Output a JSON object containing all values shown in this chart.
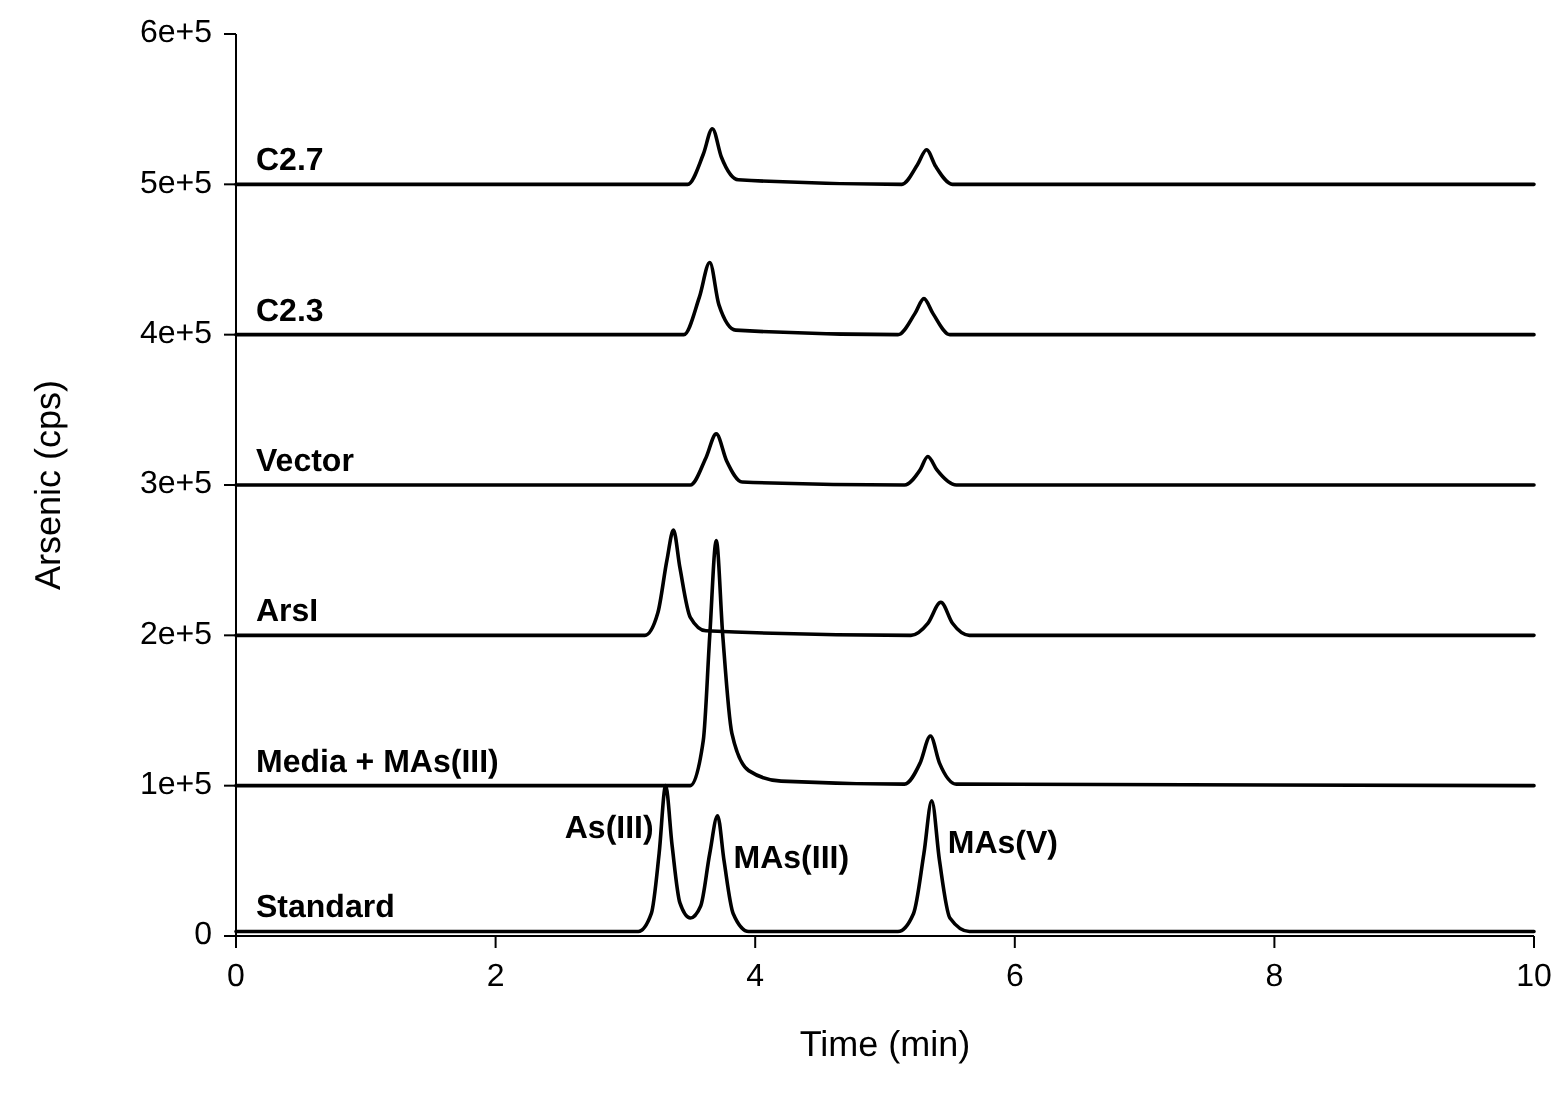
{
  "chart_data": {
    "type": "line",
    "xlabel": "Time (min)",
    "ylabel": "Arsenic (cps)",
    "xlim": [
      0,
      10
    ],
    "xticks": [
      0,
      2,
      4,
      6,
      8,
      10
    ],
    "ylim": [
      0,
      600000
    ],
    "yticks": [
      {
        "value": 0,
        "label": "0"
      },
      {
        "value": 100000,
        "label": "1e+5"
      },
      {
        "value": 200000,
        "label": "2e+5"
      },
      {
        "value": 300000,
        "label": "3e+5"
      },
      {
        "value": 400000,
        "label": "4e+5"
      },
      {
        "value": 500000,
        "label": "5e+5"
      },
      {
        "value": 600000,
        "label": "6e+5"
      }
    ],
    "grid": false,
    "marker": "none",
    "line_style": "solid",
    "series": [
      {
        "name": "Standard",
        "color": "#000000",
        "x": [
          0,
          3.1,
          3.2,
          3.26,
          3.31,
          3.36,
          3.42,
          3.5,
          3.58,
          3.65,
          3.71,
          3.76,
          3.83,
          3.95,
          5.1,
          5.22,
          5.3,
          5.36,
          5.42,
          5.5,
          5.65,
          10
        ],
        "values": [
          3000,
          3000,
          15000,
          55000,
          100000,
          60000,
          22000,
          12000,
          20000,
          55000,
          80000,
          50000,
          15000,
          3000,
          3000,
          15000,
          55000,
          90000,
          50000,
          12000,
          3000,
          3000
        ]
      },
      {
        "name": "Media + MAs(III)",
        "color": "#000000",
        "x": [
          0,
          3.5,
          3.6,
          3.65,
          3.7,
          3.75,
          3.82,
          3.95,
          4.2,
          5.15,
          5.27,
          5.35,
          5.42,
          5.55,
          10
        ],
        "values": [
          100000,
          100000,
          130000,
          200000,
          263000,
          200000,
          135000,
          110000,
          103000,
          101000,
          115000,
          133000,
          115000,
          101000,
          100000
        ]
      },
      {
        "name": "ArsI",
        "color": "#000000",
        "x": [
          0,
          3.15,
          3.25,
          3.32,
          3.37,
          3.42,
          3.5,
          3.62,
          5.2,
          5.33,
          5.43,
          5.52,
          5.65,
          10
        ],
        "values": [
          200000,
          200000,
          215000,
          250000,
          270000,
          245000,
          212000,
          203000,
          200000,
          208000,
          222000,
          208000,
          200000,
          200000
        ]
      },
      {
        "name": "Vector",
        "color": "#000000",
        "x": [
          0,
          3.5,
          3.62,
          3.7,
          3.78,
          3.9,
          5.15,
          5.27,
          5.33,
          5.4,
          5.55,
          10
        ],
        "values": [
          300000,
          300000,
          318000,
          334000,
          316000,
          302000,
          300000,
          310000,
          319000,
          310000,
          300000,
          300000
        ]
      },
      {
        "name": "C2.3",
        "color": "#000000",
        "x": [
          0,
          3.45,
          3.57,
          3.65,
          3.72,
          3.85,
          5.1,
          5.23,
          5.3,
          5.37,
          5.5,
          10
        ],
        "values": [
          400000,
          400000,
          425000,
          448000,
          420000,
          403000,
          400000,
          414000,
          424000,
          414000,
          400000,
          400000
        ]
      },
      {
        "name": "C2.7",
        "color": "#000000",
        "x": [
          0,
          3.48,
          3.6,
          3.67,
          3.74,
          3.87,
          5.13,
          5.25,
          5.32,
          5.39,
          5.52,
          10
        ],
        "values": [
          500000,
          500000,
          520000,
          537000,
          518000,
          503000,
          500000,
          513000,
          523000,
          512000,
          500000,
          500000
        ]
      }
    ],
    "annotations": [
      {
        "text": "As(III)",
        "x": 3.31,
        "y": 100000
      },
      {
        "text": "MAs(III)",
        "x": 3.71,
        "y": 80000
      },
      {
        "text": "MAs(V)",
        "x": 5.36,
        "y": 90000
      }
    ]
  }
}
